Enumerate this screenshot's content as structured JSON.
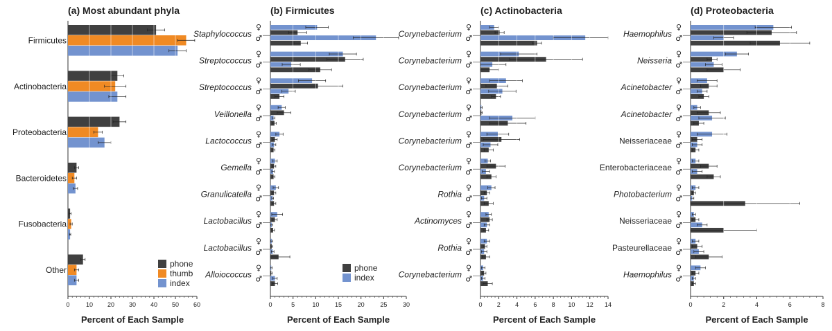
{
  "colors": {
    "phone": "#404040",
    "thumb": "#f08a24",
    "index": "#7393cf",
    "axis": "#333333",
    "err": "#222222"
  },
  "symbols": {
    "female": "♀",
    "male": "♂"
  },
  "chart_data": [
    {
      "type": "bar",
      "orientation": "horizontal",
      "title": "(a) Most abundant phyla",
      "xlabel": "Percent of Each Sample",
      "xlim": [
        0,
        60
      ],
      "xticks": [
        0,
        10,
        20,
        30,
        40,
        50,
        60
      ],
      "grid": "vertical, on bars",
      "legend": {
        "position": "bottom-right",
        "entries": [
          "phone",
          "thumb",
          "index"
        ]
      },
      "categories": [
        "Firmicutes",
        "Actinobacteria",
        "Proteobacteria",
        "Bacteroidetes",
        "Fusobacteria",
        "Other"
      ],
      "series": [
        {
          "name": "phone",
          "color": "#404040",
          "values": [
            41,
            23,
            24,
            4,
            1,
            7
          ],
          "errors": [
            4,
            3,
            3,
            1,
            0.5,
            1
          ]
        },
        {
          "name": "thumb",
          "color": "#f08a24",
          "values": [
            55,
            22,
            14,
            3,
            1.5,
            4
          ],
          "errors": [
            4,
            5,
            2,
            1,
            0.5,
            1
          ]
        },
        {
          "name": "index",
          "color": "#7393cf",
          "values": [
            51,
            23,
            17,
            3.5,
            1,
            4
          ],
          "errors": [
            4,
            4,
            3,
            1,
            0.3,
            1
          ]
        }
      ]
    },
    {
      "type": "bar",
      "orientation": "horizontal",
      "title": "(b) Firmicutes",
      "xlabel": "Percent of Each Sample",
      "xlim": [
        0,
        30
      ],
      "xticks": [
        0,
        5,
        10,
        15,
        20,
        25,
        30
      ],
      "grid": "vertical, on bars",
      "legend": {
        "position": "bottom-right",
        "entries": [
          "phone",
          "index"
        ]
      },
      "categories": [
        "Staphylococcus",
        "Streptococcus",
        "Streptococcus",
        "Veillonella",
        "Lactococcus",
        "Gemella",
        "Granulicatella",
        "Lactobacillus",
        "Lactobacillus",
        "Alloiococcus"
      ],
      "categories_italic": true,
      "group_order": [
        "female-index",
        "female-phone",
        "male-index",
        "male-phone"
      ],
      "series": [
        {
          "name": "female index",
          "color": "#7393cf",
          "values": [
            10.3,
            16,
            9.2,
            2.5,
            2,
            1,
            1.2,
            1.5,
            0.3,
            0.2
          ],
          "errors": [
            2.5,
            3,
            3,
            0.8,
            0.8,
            0.5,
            0.6,
            1.2,
            0.2,
            0.2
          ]
        },
        {
          "name": "female phone",
          "color": "#404040",
          "values": [
            6,
            16.5,
            10.5,
            3,
            1,
            0.8,
            0.8,
            1,
            0.3,
            0.2
          ],
          "errors": [
            2,
            4,
            5.5,
            1.5,
            0.5,
            0.4,
            0.4,
            0.5,
            0.2,
            0.2
          ]
        },
        {
          "name": "male index",
          "color": "#7393cf",
          "values": [
            23.3,
            4.6,
            4,
            0.7,
            0.8,
            0.6,
            0.5,
            0.3,
            0.5,
            1
          ],
          "errors": [
            5,
            2,
            1.5,
            0.3,
            0.4,
            0.3,
            0.2,
            0.2,
            0.3,
            0.5
          ]
        },
        {
          "name": "male phone",
          "color": "#404040",
          "values": [
            6.7,
            11,
            2,
            0.9,
            0.7,
            0.7,
            0.8,
            0.6,
            1.8,
            1
          ],
          "errors": [
            1.5,
            2.5,
            1,
            0.4,
            0.3,
            0.3,
            0.4,
            0.3,
            2.5,
            0.6
          ]
        }
      ]
    },
    {
      "type": "bar",
      "orientation": "horizontal",
      "title": "(c) Actinobacteria",
      "xlabel": "Percent of Each Sample",
      "xlim": [
        0,
        14
      ],
      "xticks": [
        0,
        2,
        4,
        6,
        8,
        10,
        12,
        14
      ],
      "grid": "vertical, on bars",
      "categories": [
        "Corynebacterium",
        "Corynebacterium",
        "Corynebacterium",
        "Corynebacterium",
        "Corynebacterium",
        "Corynebacterium",
        "Rothia",
        "Actinomyces",
        "Rothia",
        "Corynebacterium"
      ],
      "categories_italic": true,
      "group_order": [
        "female-index",
        "female-phone",
        "male-index",
        "male-phone"
      ],
      "series": [
        {
          "name": "female index",
          "color": "#7393cf",
          "values": [
            1.5,
            4.2,
            2.8,
            0.1,
            1.9,
            0.8,
            1.2,
            0.9,
            0.7,
            0.3
          ],
          "errors": [
            0.5,
            2,
            1.8,
            0.1,
            1.2,
            0.3,
            0.4,
            0.3,
            0.3,
            0.2
          ]
        },
        {
          "name": "female phone",
          "color": "#404040",
          "values": [
            2.1,
            7.2,
            1.8,
            0.1,
            2.3,
            1.7,
            0.7,
            1,
            0.5,
            0.4
          ],
          "errors": [
            0.5,
            4,
            1.2,
            0.1,
            2,
            1,
            0.3,
            0.3,
            0.2,
            0.2
          ]
        },
        {
          "name": "male index",
          "color": "#7393cf",
          "values": [
            11.5,
            1.3,
            2.4,
            3.5,
            1.1,
            0.6,
            0.4,
            0.7,
            0.4,
            0.3
          ],
          "errors": [
            3.5,
            1.5,
            1.5,
            2.5,
            0.8,
            0.4,
            0.3,
            0.3,
            0.3,
            0.2
          ]
        },
        {
          "name": "male phone",
          "color": "#404040",
          "values": [
            6.2,
            1,
            1.7,
            3,
            0.9,
            1.2,
            0.9,
            0.6,
            0.6,
            0.8
          ],
          "errors": [
            0.5,
            1,
            0.5,
            2,
            0.5,
            0.5,
            0.5,
            0.3,
            0.4,
            0.5
          ]
        }
      ]
    },
    {
      "type": "bar",
      "orientation": "horizontal",
      "title": "(d) Proteobacteria",
      "xlabel": "Percent of Each Sample",
      "xlim": [
        0,
        8
      ],
      "xticks": [
        0,
        2,
        4,
        6,
        8
      ],
      "grid": "vertical, on bars",
      "categories": [
        "Haemophilus",
        "Neisseria",
        "Acinetobacter",
        "Acinetobacter",
        "Neisseriaceae",
        "Enterobacteriaceae",
        "Photobacterium",
        "Neisseriaceae",
        "Pasteurellaceae",
        "Haemophilus"
      ],
      "categories_italic": [
        true,
        true,
        true,
        true,
        false,
        false,
        true,
        false,
        false,
        true
      ],
      "group_order": [
        "female-index",
        "female-phone",
        "male-index",
        "male-phone"
      ],
      "series": [
        {
          "name": "female index",
          "color": "#7393cf",
          "values": [
            5,
            2.8,
            1,
            0.4,
            1.3,
            0.3,
            0.3,
            0.2,
            0.3,
            0.6
          ],
          "errors": [
            1.1,
            0.7,
            0.6,
            0.2,
            0.9,
            0.2,
            0.2,
            0.1,
            0.2,
            0.3
          ]
        },
        {
          "name": "female phone",
          "color": "#404040",
          "values": [
            4.9,
            1.3,
            1.1,
            1.1,
            0.4,
            1.1,
            0.2,
            0.3,
            0.4,
            0.3
          ],
          "errors": [
            1.5,
            0.3,
            0.5,
            0.7,
            0.3,
            0.5,
            0.1,
            0.2,
            0.3,
            0.2
          ]
        },
        {
          "name": "male index",
          "color": "#7393cf",
          "values": [
            2,
            1.4,
            0.7,
            1.3,
            0.4,
            0.4,
            0.1,
            0.7,
            0.5,
            0.2
          ],
          "errors": [
            0.6,
            0.5,
            0.3,
            0.8,
            0.3,
            0.3,
            0.1,
            0.3,
            0.3,
            0.1
          ]
        },
        {
          "name": "male phone",
          "color": "#404040",
          "values": [
            5.4,
            2,
            0.8,
            0.5,
            0.3,
            1.4,
            3.3,
            2,
            1.1,
            0.2
          ],
          "errors": [
            1.8,
            1,
            0.3,
            0.3,
            0.2,
            0.4,
            3.3,
            2,
            0.8,
            0.1
          ]
        }
      ]
    }
  ]
}
